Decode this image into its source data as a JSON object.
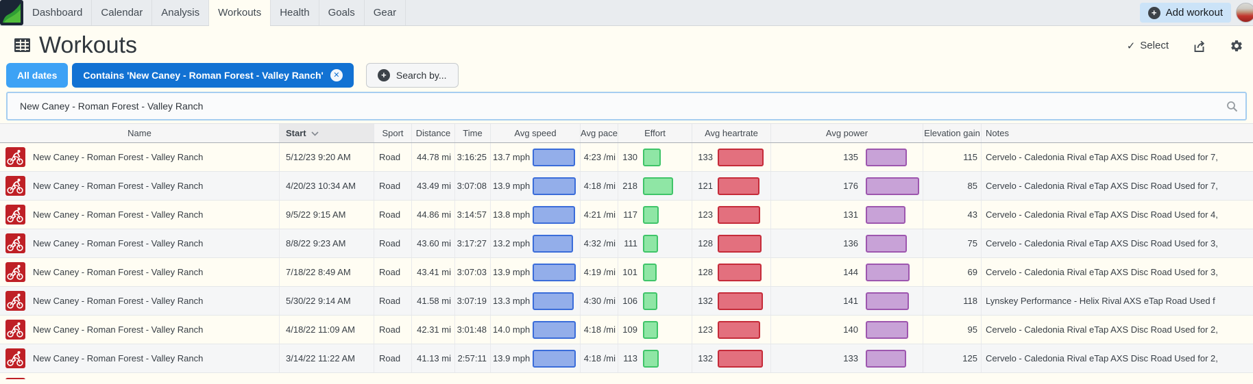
{
  "nav": {
    "items": [
      "Dashboard",
      "Calendar",
      "Analysis",
      "Workouts",
      "Health",
      "Goals",
      "Gear"
    ],
    "active_item": "Workouts",
    "add_workout_label": "Add workout"
  },
  "page": {
    "title": "Workouts",
    "select_label": "Select"
  },
  "filters": {
    "date_filter_label": "All dates",
    "contains_filter_label": "Contains 'New Caney - Roman Forest - Valley Ranch'",
    "search_by_label": "Search by...",
    "search_input_value": "New Caney - Roman Forest - Valley Ranch"
  },
  "icons": {
    "check": "✓",
    "plus": "+",
    "close": "✕"
  },
  "colors": {
    "date_chip_blue": "#3da2f5",
    "contains_chip_blue": "#1272d3",
    "add_button_blue": "#cbe3f8",
    "sport_icon_red": "#bf2026",
    "speed_bar_fill": "#93aeea",
    "speed_bar_border": "#3a6cd9",
    "effort_bar_fill": "#8fe6a5",
    "effort_bar_border": "#3fc468",
    "heartrate_bar_fill": "#e3707e",
    "heartrate_bar_border": "#c52b39",
    "power_bar_fill": "#c8a2d7",
    "power_bar_border": "#9d56ae"
  },
  "table": {
    "columns": [
      "Name",
      "Start",
      "Sport",
      "Distance",
      "Time",
      "Avg speed",
      "Avg pace",
      "Effort",
      "Avg heartrate",
      "Avg power",
      "Elevation gain",
      "Notes"
    ],
    "sorted_by": "Start",
    "sort_direction": "desc",
    "rows": [
      {
        "name": "New Caney - Roman Forest - Valley Ranch",
        "start": "5/12/23 9:20 AM",
        "sport": "Road",
        "distance": "44.78 mi",
        "time": "3:16:25",
        "avg_speed": "13.7 mph",
        "avg_pace": "4:23 /mi",
        "effort": 130,
        "avg_heartrate": 133,
        "avg_power": 135,
        "elevation_gain": 115,
        "notes": "Cervelo - Caledonia Rival eTap AXS Disc Road Used for 7,"
      },
      {
        "name": "New Caney - Roman Forest - Valley Ranch",
        "start": "4/20/23 10:34 AM",
        "sport": "Road",
        "distance": "43.49 mi",
        "time": "3:07:08",
        "avg_speed": "13.9 mph",
        "avg_pace": "4:18 /mi",
        "effort": 218,
        "avg_heartrate": 121,
        "avg_power": 176,
        "elevation_gain": 85,
        "notes": "Cervelo - Caledonia Rival eTap AXS Disc Road Used for 7,"
      },
      {
        "name": "New Caney - Roman Forest - Valley Ranch",
        "start": "9/5/22 9:15 AM",
        "sport": "Road",
        "distance": "44.86 mi",
        "time": "3:14:57",
        "avg_speed": "13.8 mph",
        "avg_pace": "4:21 /mi",
        "effort": 117,
        "avg_heartrate": 123,
        "avg_power": 131,
        "elevation_gain": 43,
        "notes": "Cervelo - Caledonia Rival eTap AXS Disc Road Used for 4,"
      },
      {
        "name": "New Caney - Roman Forest - Valley Ranch",
        "start": "8/8/22 9:23 AM",
        "sport": "Road",
        "distance": "43.60 mi",
        "time": "3:17:27",
        "avg_speed": "13.2 mph",
        "avg_pace": "4:32 /mi",
        "effort": 111,
        "avg_heartrate": 128,
        "avg_power": 136,
        "elevation_gain": 75,
        "notes": "Cervelo - Caledonia Rival eTap AXS Disc Road Used for 3,"
      },
      {
        "name": "New Caney - Roman Forest - Valley Ranch",
        "start": "7/18/22 8:49 AM",
        "sport": "Road",
        "distance": "43.41 mi",
        "time": "3:07:03",
        "avg_speed": "13.9 mph",
        "avg_pace": "4:19 /mi",
        "effort": 101,
        "avg_heartrate": 128,
        "avg_power": 144,
        "elevation_gain": 69,
        "notes": "Cervelo - Caledonia Rival eTap AXS Disc Road Used for 3,"
      },
      {
        "name": "New Caney - Roman Forest - Valley Ranch",
        "start": "5/30/22 9:14 AM",
        "sport": "Road",
        "distance": "41.58 mi",
        "time": "3:07:19",
        "avg_speed": "13.3 mph",
        "avg_pace": "4:30 /mi",
        "effort": 106,
        "avg_heartrate": 132,
        "avg_power": 141,
        "elevation_gain": 118,
        "notes": "Lynskey Performance - Helix Rival AXS eTap Road Used f"
      },
      {
        "name": "New Caney - Roman Forest - Valley Ranch",
        "start": "4/18/22 11:09 AM",
        "sport": "Road",
        "distance": "42.31 mi",
        "time": "3:01:48",
        "avg_speed": "14.0 mph",
        "avg_pace": "4:18 /mi",
        "effort": 109,
        "avg_heartrate": 123,
        "avg_power": 140,
        "elevation_gain": 95,
        "notes": "Cervelo - Caledonia Rival eTap AXS Disc Road Used for 2,"
      },
      {
        "name": "New Caney - Roman Forest - Valley Ranch",
        "start": "3/14/22 11:22 AM",
        "sport": "Road",
        "distance": "41.13 mi",
        "time": "2:57:11",
        "avg_speed": "13.9 mph",
        "avg_pace": "4:18 /mi",
        "effort": 113,
        "avg_heartrate": 132,
        "avg_power": 133,
        "elevation_gain": 125,
        "notes": "Cervelo - Caledonia Rival eTap AXS Disc Road Used for 2,"
      }
    ]
  }
}
